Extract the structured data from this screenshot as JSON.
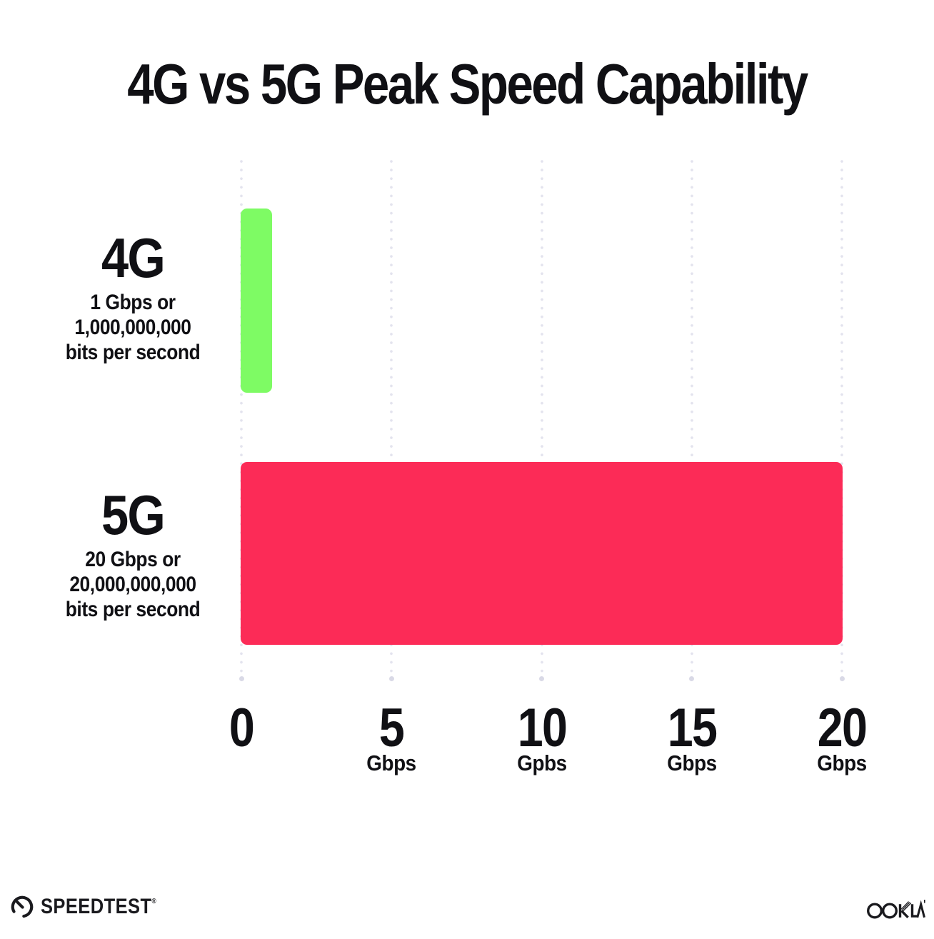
{
  "title": "4G vs 5G Peak Speed Capability",
  "colors": {
    "bar_4g": "#7EFB64",
    "bar_5g": "#FC2B57",
    "grid_dot": "#E3E3EE",
    "grid_end_dot": "#D9D9E6",
    "ink": "#101014",
    "logo": "#1A1A1E",
    "background": "#FFFFFF"
  },
  "chart_data": {
    "type": "bar",
    "orientation": "horizontal",
    "title": "4G vs 5G Peak Speed Capability",
    "categories": [
      "4G",
      "5G"
    ],
    "values": [
      1,
      20
    ],
    "unit": "Gbps",
    "bar_colors": [
      "#7EFB64",
      "#FC2B57"
    ],
    "row_labels": [
      {
        "name": "4G",
        "desc_lines": [
          "1 Gbps or",
          "1,000,000,000",
          "bits per second"
        ]
      },
      {
        "name": "5G",
        "desc_lines": [
          "20 Gbps or",
          "20,000,000,000",
          "bits per second"
        ]
      }
    ],
    "xlabel": "",
    "ylabel": "",
    "xlim": [
      0,
      20
    ],
    "x_ticks": [
      {
        "value": 0,
        "label": "0",
        "unit": ""
      },
      {
        "value": 5,
        "label": "5",
        "unit": "Gbps"
      },
      {
        "value": 10,
        "label": "10",
        "unit": "Gpbs"
      },
      {
        "value": 15,
        "label": "15",
        "unit": "Gbps"
      },
      {
        "value": 20,
        "label": "20",
        "unit": "Gbps"
      }
    ],
    "grid": "vertical-dotted",
    "legend": "none"
  },
  "footer": {
    "speedtest": "SPEEDTEST",
    "speedtest_reg": "®",
    "ookla": "OOKLA"
  }
}
